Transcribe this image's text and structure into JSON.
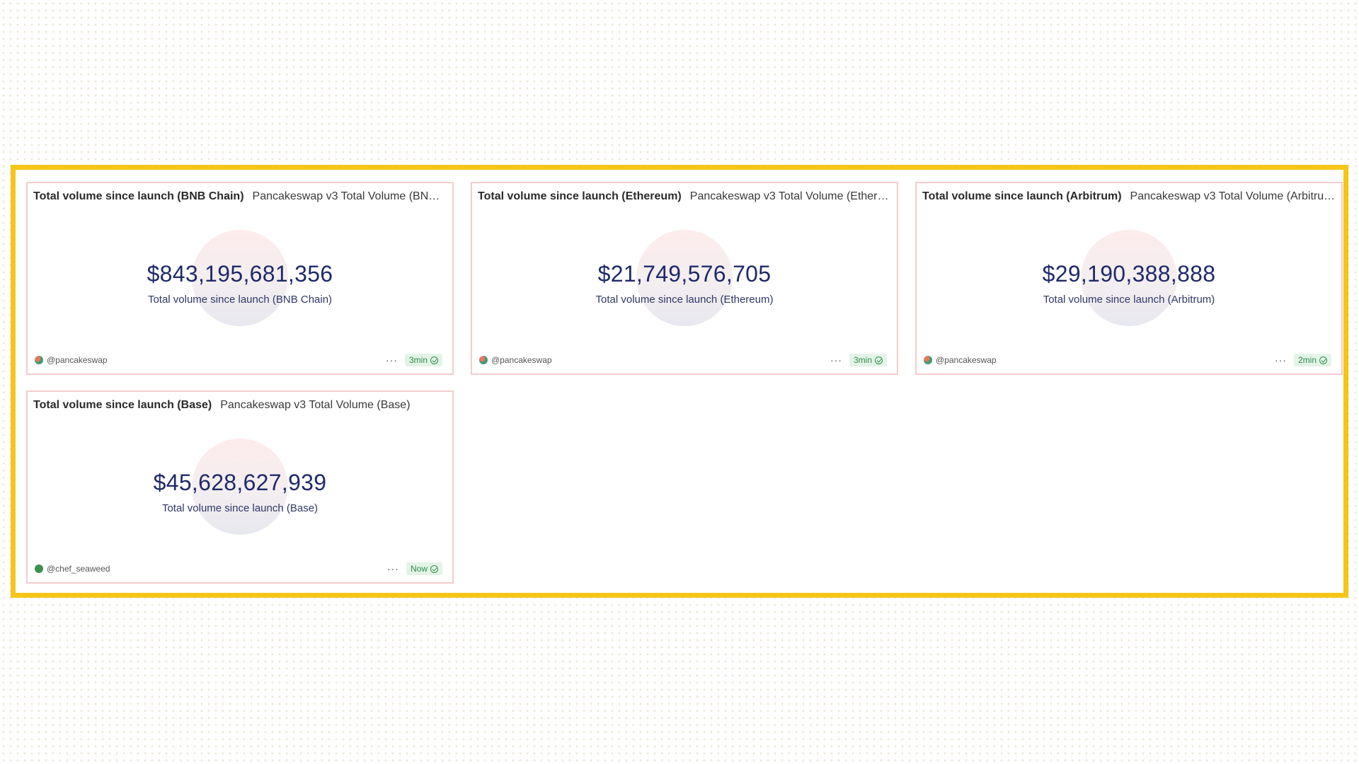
{
  "cards": [
    {
      "title": "Total volume since launch (BNB Chain)",
      "subtitle": "Pancakeswap v3 Total Volume (BNB Ch...",
      "value": "$843,195,681,356",
      "label": "Total volume since launch (BNB Chain)",
      "author": "@pancakeswap",
      "freshness": "3min"
    },
    {
      "title": "Total volume since launch (Ethereum)",
      "subtitle": "Pancakeswap v3 Total Volume (Ethereu...",
      "value": "$21,749,576,705",
      "label": "Total volume since launch (Ethereum)",
      "author": "@pancakeswap",
      "freshness": "3min"
    },
    {
      "title": "Total volume since launch (Arbitrum)",
      "subtitle": "Pancakeswap v3 Total Volume (Arbitrum)",
      "value": "$29,190,388,888",
      "label": "Total volume since launch (Arbitrum)",
      "author": "@pancakeswap",
      "freshness": "2min"
    },
    {
      "title": "Total volume since launch (Base)",
      "subtitle": "Pancakeswap v3 Total Volume (Base)",
      "value": "$45,628,627,939",
      "label": "Total volume since launch (Base)",
      "author": "@chef_seaweed",
      "freshness": "Now"
    }
  ],
  "more_glyph": "···",
  "colors": {
    "highlight_border": "#f5c518",
    "card_border": "#f3cccc",
    "value_text": "#1f2a6b",
    "badge_green": "#2f8c4a"
  }
}
